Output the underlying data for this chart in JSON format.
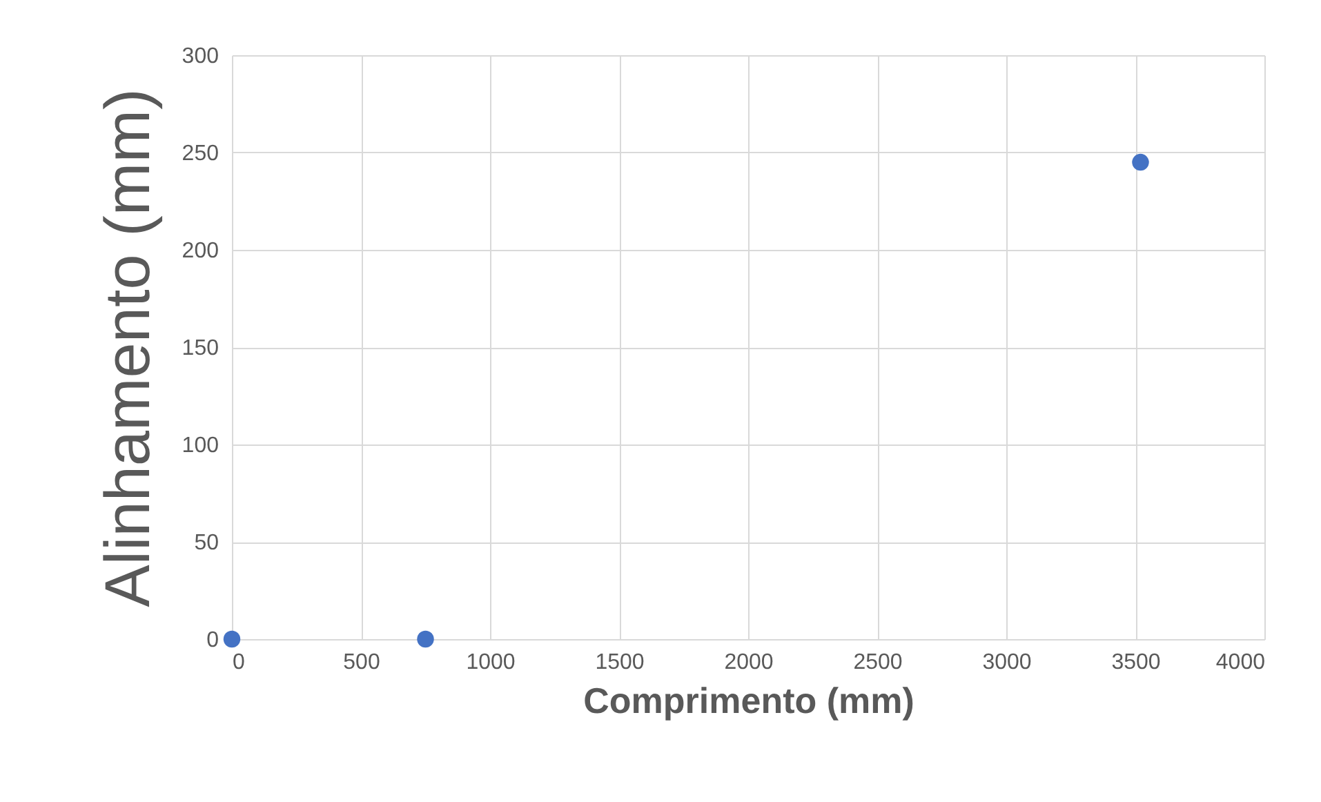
{
  "chart_data": {
    "type": "scatter",
    "xlabel": "Comprimento (mm)",
    "ylabel": "Alinhamento (mm)",
    "x": [
      0,
      750,
      3520
    ],
    "series": [
      {
        "color": "#4472c4",
        "values": [
          0,
          0,
          245
        ]
      }
    ],
    "xlim": [
      0,
      4000
    ],
    "xticks": [
      0,
      500,
      1000,
      1500,
      2000,
      2500,
      3000,
      3500,
      4000
    ],
    "ylim": [
      0,
      300
    ],
    "yticks": [
      0,
      50,
      100,
      150,
      200,
      250,
      300
    ],
    "grid": true,
    "marker": "circle"
  }
}
